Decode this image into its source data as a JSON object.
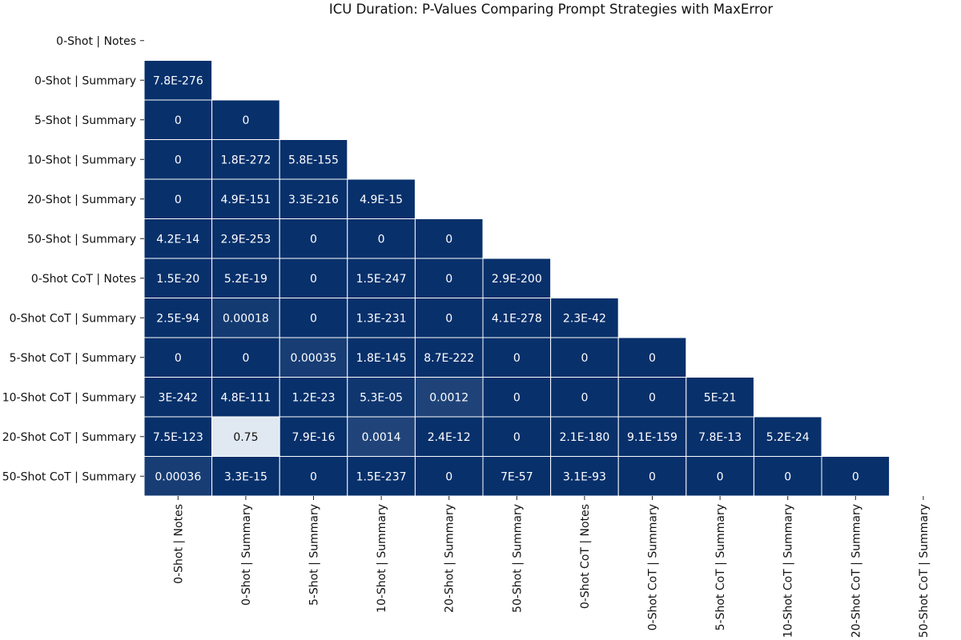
{
  "chart_data": {
    "type": "heatmap",
    "title": "ICU Duration: P-Values Comparing Prompt Strategies with MaxError",
    "labels": [
      "0-Shot | Notes",
      "0-Shot | Summary",
      "5-Shot | Summary",
      "10-Shot | Summary",
      "20-Shot | Summary",
      "50-Shot | Summary",
      "0-Shot CoT | Notes",
      "0-Shot CoT | Summary",
      "5-Shot CoT | Summary",
      "10-Shot CoT | Summary",
      "20-Shot CoT | Summary",
      "50-Shot CoT | Summary"
    ],
    "matrix": [
      [],
      [
        "7.8E-276"
      ],
      [
        "0",
        "0"
      ],
      [
        "0",
        "1.8E-272",
        "5.8E-155"
      ],
      [
        "0",
        "4.9E-151",
        "3.3E-216",
        "4.9E-15"
      ],
      [
        "4.2E-14",
        "2.9E-253",
        "0",
        "0",
        "0"
      ],
      [
        "1.5E-20",
        "5.2E-19",
        "0",
        "1.5E-247",
        "0",
        "2.9E-200"
      ],
      [
        "2.5E-94",
        "0.00018",
        "0",
        "1.3E-231",
        "0",
        "4.1E-278",
        "2.3E-42"
      ],
      [
        "0",
        "0",
        "0.00035",
        "1.8E-145",
        "8.7E-222",
        "0",
        "0",
        "0"
      ],
      [
        "3E-242",
        "4.8E-111",
        "1.2E-23",
        "5.3E-05",
        "0.0012",
        "0",
        "0",
        "0",
        "5E-21"
      ],
      [
        "7.5E-123",
        "0.75",
        "7.9E-16",
        "0.0014",
        "2.4E-12",
        "0",
        "2.1E-180",
        "9.1E-159",
        "7.8E-13",
        "5.2E-24"
      ],
      [
        "0.00036",
        "3.3E-15",
        "0",
        "1.5E-237",
        "0",
        "7E-57",
        "3.1E-93",
        "0",
        "0",
        "0",
        "0"
      ]
    ],
    "mask": "upper-triangle-and-diagonal",
    "colormap": "Blues_r",
    "colors": {
      "dark": "#08306b",
      "light": "#f7fbff",
      "grid": "#ffffff",
      "text": "#111111"
    },
    "grid": true,
    "legend": "none"
  }
}
